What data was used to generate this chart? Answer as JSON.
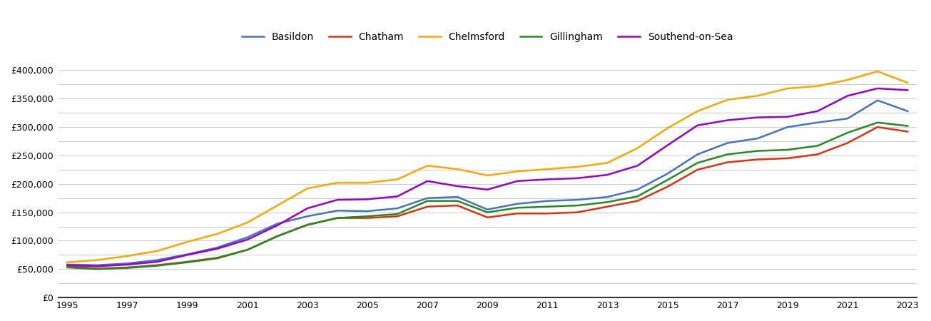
{
  "years": [
    1995,
    1996,
    1997,
    1998,
    1999,
    2000,
    2001,
    2002,
    2003,
    2004,
    2005,
    2006,
    2007,
    2008,
    2009,
    2010,
    2011,
    2012,
    2013,
    2014,
    2015,
    2016,
    2017,
    2018,
    2019,
    2020,
    2021,
    2022,
    2023
  ],
  "series": {
    "Basildon": [
      58000,
      57000,
      60000,
      66000,
      76000,
      88000,
      106000,
      130000,
      143000,
      153000,
      152000,
      157000,
      175000,
      177000,
      155000,
      165000,
      170000,
      172000,
      177000,
      190000,
      218000,
      252000,
      272000,
      280000,
      300000,
      308000,
      315000,
      347000,
      328000
    ],
    "Chatham": [
      55000,
      51000,
      53000,
      57000,
      63000,
      70000,
      84000,
      108000,
      128000,
      140000,
      140000,
      143000,
      160000,
      162000,
      141000,
      148000,
      148000,
      150000,
      160000,
      170000,
      195000,
      225000,
      238000,
      243000,
      245000,
      252000,
      272000,
      300000,
      292000
    ],
    "Chelmsford": [
      62000,
      66000,
      73000,
      82000,
      98000,
      112000,
      132000,
      162000,
      192000,
      202000,
      202000,
      208000,
      232000,
      226000,
      215000,
      222000,
      226000,
      230000,
      237000,
      263000,
      298000,
      328000,
      348000,
      355000,
      368000,
      372000,
      383000,
      398000,
      378000
    ],
    "Gillingham": [
      53000,
      50000,
      52000,
      56000,
      62000,
      69000,
      84000,
      108000,
      128000,
      140000,
      143000,
      147000,
      170000,
      170000,
      150000,
      158000,
      160000,
      162000,
      168000,
      178000,
      207000,
      237000,
      252000,
      258000,
      260000,
      267000,
      290000,
      308000,
      302000
    ],
    "Southend-on-Sea": [
      57000,
      55000,
      58000,
      63000,
      75000,
      86000,
      102000,
      127000,
      157000,
      172000,
      173000,
      178000,
      205000,
      196000,
      190000,
      205000,
      208000,
      210000,
      216000,
      232000,
      268000,
      303000,
      312000,
      317000,
      318000,
      328000,
      355000,
      368000,
      365000
    ]
  },
  "colors": {
    "Basildon": "#4472c4",
    "Chatham": "#e03010",
    "Chelmsford": "#ffa500",
    "Gillingham": "#228b22",
    "Southend-on-Sea": "#9900cc"
  },
  "ylim": [
    0,
    420000
  ],
  "yticks": [
    0,
    25000,
    50000,
    75000,
    100000,
    125000,
    150000,
    175000,
    200000,
    225000,
    250000,
    275000,
    300000,
    325000,
    350000,
    375000,
    400000
  ],
  "ytick_labels": [
    "",
    "",
    "£50,000",
    "",
    "£100,000",
    "",
    "£150,000",
    "",
    "£200,000",
    "",
    "£250,000",
    "",
    "£300,000",
    "",
    "£350,000",
    "",
    "£400,000"
  ],
  "xlim_start": 1995,
  "xlim_end": 2023,
  "xticks": [
    1995,
    1997,
    1999,
    2001,
    2003,
    2005,
    2007,
    2009,
    2011,
    2013,
    2015,
    2017,
    2019,
    2021,
    2023
  ],
  "background_color": "#ffffff",
  "grid_color": "#cccccc",
  "line_width": 1.8,
  "zero_label": "£0"
}
